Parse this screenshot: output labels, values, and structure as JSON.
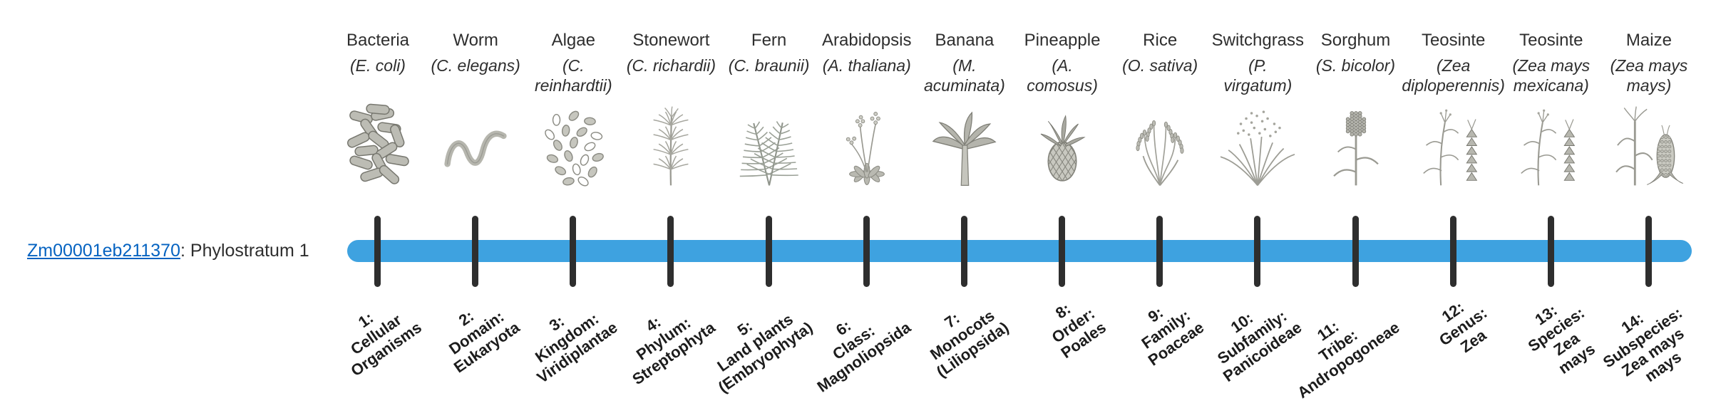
{
  "gene": {
    "id": "Zm00001eb211370",
    "suffix": ": Phylostratum 1"
  },
  "colors": {
    "bar": "#3ea2e0",
    "tick": "#2e2e2e",
    "link": "#0563c1",
    "text": "#2e2e2e"
  },
  "columns": [
    {
      "common": "Bacteria",
      "sci_lines": [
        "(E. coli)"
      ],
      "icon": "bacteria-icon",
      "strata_lines": [
        "1:",
        "Cellular",
        "Organisms"
      ]
    },
    {
      "common": "Worm",
      "sci_lines": [
        "(C. elegans)"
      ],
      "icon": "worm-icon",
      "strata_lines": [
        "2:",
        "Domain:",
        "Eukaryota"
      ]
    },
    {
      "common": "Algae",
      "sci_lines": [
        "(C.",
        "reinhardtii)"
      ],
      "icon": "algae-icon",
      "strata_lines": [
        "3:",
        "Kingdom:",
        "Viridiplantae"
      ]
    },
    {
      "common": "Stonewort",
      "sci_lines": [
        "(C. richardii)"
      ],
      "icon": "stonewort-icon",
      "strata_lines": [
        "4:",
        "Phylum:",
        "Streptophyta"
      ]
    },
    {
      "common": "Fern",
      "sci_lines": [
        "(C. braunii)"
      ],
      "icon": "fern-icon",
      "strata_lines": [
        "5:",
        "Land plants",
        "(Embryophyta)"
      ]
    },
    {
      "common": "Arabidopsis",
      "sci_lines": [
        "(A. thaliana)"
      ],
      "icon": "arabidopsis-icon",
      "strata_lines": [
        "6:",
        "Class:",
        "Magnoliopsida"
      ]
    },
    {
      "common": "Banana",
      "sci_lines": [
        "(M.",
        "acuminata)"
      ],
      "icon": "banana-icon",
      "strata_lines": [
        "7:",
        "Monocots",
        "(Liliopsida)"
      ]
    },
    {
      "common": "Pineapple",
      "sci_lines": [
        "(A.",
        "comosus)"
      ],
      "icon": "pineapple-icon",
      "strata_lines": [
        "8:",
        "Order:",
        "Poales"
      ]
    },
    {
      "common": "Rice",
      "sci_lines": [
        "(O. sativa)"
      ],
      "icon": "rice-icon",
      "strata_lines": [
        "9:",
        "Family:",
        "Poaceae"
      ]
    },
    {
      "common": "Switchgrass",
      "sci_lines": [
        "(P.",
        "virgatum)"
      ],
      "icon": "switchgrass-icon",
      "strata_lines": [
        "10:",
        "Subfamily:",
        "Panicoideae"
      ]
    },
    {
      "common": "Sorghum",
      "sci_lines": [
        "(S. bicolor)"
      ],
      "icon": "sorghum-icon",
      "strata_lines": [
        "11:",
        "Tribe:",
        "Andropogoneae"
      ]
    },
    {
      "common": "Teosinte",
      "sci_lines": [
        "(Zea",
        "diploperennis)"
      ],
      "icon": "teosinte-icon",
      "strata_lines": [
        "12:",
        "Genus:",
        "Zea"
      ]
    },
    {
      "common": "Teosinte",
      "sci_lines": [
        "(Zea mays",
        "mexicana)"
      ],
      "icon": "teosinte-icon",
      "strata_lines": [
        "13:",
        "Species:",
        "Zea",
        "mays"
      ]
    },
    {
      "common": "Maize",
      "sci_lines": [
        "(Zea mays",
        "mays)"
      ],
      "icon": "maize-icon",
      "strata_lines": [
        "14:",
        "Subspecies:",
        "Zea mays",
        "mays"
      ]
    }
  ]
}
